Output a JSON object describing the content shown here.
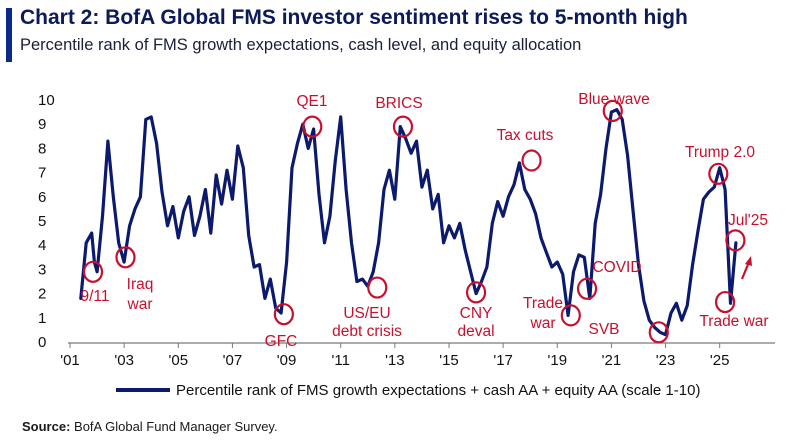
{
  "title": "Chart 2: BofA Global FMS investor sentiment rises to 5-month high",
  "subtitle": "Percentile rank of FMS growth expectations, cash level, and equity allocation",
  "source_label": "Source:",
  "source_text": "BofA Global Fund Manager Survey.",
  "colors": {
    "line": "#0c1a6e",
    "annotation": "#c8102e",
    "title": "#0c1a5a"
  },
  "chart_data": {
    "type": "line",
    "title": "Chart 2: BofA Global FMS investor sentiment rises to 5-month high",
    "ylabel": "",
    "xlabel": "",
    "ylim": [
      0,
      10
    ],
    "xlim": [
      2001.0,
      2026.6
    ],
    "yticks": [
      0,
      1,
      2,
      3,
      4,
      5,
      6,
      7,
      8,
      9,
      10
    ],
    "xticks": [
      {
        "value": 2001,
        "label": "'01"
      },
      {
        "value": 2003,
        "label": "'03"
      },
      {
        "value": 2005,
        "label": "'05"
      },
      {
        "value": 2007,
        "label": "'07"
      },
      {
        "value": 2009,
        "label": "'09"
      },
      {
        "value": 2011,
        "label": "'11"
      },
      {
        "value": 2013,
        "label": "'13"
      },
      {
        "value": 2015,
        "label": "'15"
      },
      {
        "value": 2017,
        "label": "'17"
      },
      {
        "value": 2019,
        "label": "'19"
      },
      {
        "value": 2021,
        "label": "'21"
      },
      {
        "value": 2023,
        "label": "'23"
      },
      {
        "value": 2025,
        "label": "'25"
      }
    ],
    "series": [
      {
        "name": "Percentile rank of FMS growth expectations + cash AA + equity AA (scale 1-10)",
        "x": [
          2001.4,
          2001.6,
          2001.8,
          2001.9,
          2002.0,
          2002.2,
          2002.4,
          2002.6,
          2002.8,
          2003.0,
          2003.2,
          2003.4,
          2003.6,
          2003.8,
          2004.0,
          2004.2,
          2004.4,
          2004.6,
          2004.8,
          2005.0,
          2005.2,
          2005.4,
          2005.6,
          2005.8,
          2006.0,
          2006.2,
          2006.4,
          2006.6,
          2006.8,
          2007.0,
          2007.2,
          2007.4,
          2007.6,
          2007.8,
          2008.0,
          2008.2,
          2008.4,
          2008.6,
          2008.8,
          2009.0,
          2009.2,
          2009.4,
          2009.6,
          2009.8,
          2010.0,
          2010.2,
          2010.4,
          2010.6,
          2010.8,
          2011.0,
          2011.2,
          2011.4,
          2011.6,
          2011.8,
          2012.0,
          2012.2,
          2012.4,
          2012.6,
          2012.8,
          2013.0,
          2013.2,
          2013.4,
          2013.6,
          2013.8,
          2014.0,
          2014.2,
          2014.4,
          2014.6,
          2014.8,
          2015.0,
          2015.2,
          2015.4,
          2015.6,
          2015.8,
          2016.0,
          2016.2,
          2016.4,
          2016.6,
          2016.8,
          2017.0,
          2017.2,
          2017.4,
          2017.6,
          2017.8,
          2018.0,
          2018.2,
          2018.4,
          2018.6,
          2018.8,
          2019.0,
          2019.2,
          2019.4,
          2019.6,
          2019.8,
          2020.0,
          2020.2,
          2020.4,
          2020.6,
          2020.8,
          2021.0,
          2021.2,
          2021.4,
          2021.6,
          2021.8,
          2022.0,
          2022.2,
          2022.4,
          2022.6,
          2022.8,
          2023.0,
          2023.2,
          2023.4,
          2023.6,
          2023.8,
          2024.0,
          2024.2,
          2024.4,
          2024.6,
          2024.8,
          2025.0,
          2025.2,
          2025.4,
          2025.6
        ],
        "values": [
          1.8,
          4.1,
          4.5,
          3.3,
          2.9,
          5.2,
          8.3,
          6.0,
          4.1,
          3.3,
          4.8,
          5.5,
          6.0,
          9.2,
          9.3,
          8.2,
          6.2,
          4.8,
          5.6,
          4.3,
          5.4,
          6.0,
          4.4,
          5.2,
          6.3,
          4.5,
          6.9,
          5.7,
          7.1,
          5.9,
          8.1,
          7.2,
          4.4,
          3.1,
          3.2,
          1.8,
          2.6,
          1.4,
          1.2,
          3.3,
          7.2,
          8.2,
          9.0,
          8.0,
          8.8,
          6.1,
          4.1,
          5.2,
          7.5,
          9.3,
          6.3,
          4.1,
          2.5,
          2.6,
          2.3,
          2.9,
          4.1,
          6.3,
          7.1,
          5.9,
          8.9,
          8.4,
          7.8,
          8.3,
          6.4,
          7.1,
          5.5,
          6.1,
          4.1,
          4.8,
          4.3,
          4.9,
          3.8,
          2.9,
          2.0,
          2.5,
          3.1,
          4.9,
          5.8,
          5.2,
          6.0,
          6.5,
          7.4,
          6.3,
          5.9,
          5.3,
          4.3,
          3.7,
          3.1,
          3.3,
          2.8,
          1.1,
          2.9,
          3.6,
          3.5,
          1.8,
          4.9,
          6.1,
          8.0,
          9.5,
          9.6,
          9.2,
          7.7,
          5.4,
          3.2,
          1.7,
          0.9,
          0.6,
          0.4,
          0.3,
          1.2,
          1.6,
          0.9,
          1.5,
          3.2,
          4.6,
          5.9,
          6.2,
          6.4,
          7.2,
          6.3,
          1.6,
          4.1
        ]
      }
    ],
    "annotations": [
      {
        "label": "9/11",
        "x": 2001.85,
        "y": 2.9
      },
      {
        "label": "Iraq war",
        "x": 2003.05,
        "y": 3.5
      },
      {
        "label": "GFC",
        "x": 2008.9,
        "y": 1.15
      },
      {
        "label": "QE1",
        "x": 2009.95,
        "y": 8.9
      },
      {
        "label": "US/EU debt crisis",
        "x": 2012.35,
        "y": 2.25
      },
      {
        "label": "BRICS",
        "x": 2013.3,
        "y": 8.9
      },
      {
        "label": "CNY deval",
        "x": 2016.0,
        "y": 2.05
      },
      {
        "label": "Tax cuts",
        "x": 2018.05,
        "y": 7.5
      },
      {
        "label": "Trade war",
        "x": 2019.5,
        "y": 1.1
      },
      {
        "label": "COVID",
        "x": 2020.1,
        "y": 2.2
      },
      {
        "label": "Blue wave",
        "x": 2021.05,
        "y": 9.55
      },
      {
        "label": "SVB",
        "x": 2022.75,
        "y": 0.4
      },
      {
        "label": "Trump 2.0",
        "x": 2024.95,
        "y": 6.95
      },
      {
        "label": "Trade war",
        "x": 2025.2,
        "y": 1.65
      },
      {
        "label": "Jul'25",
        "x": 2025.58,
        "y": 4.2
      }
    ],
    "legend": "bottom"
  }
}
